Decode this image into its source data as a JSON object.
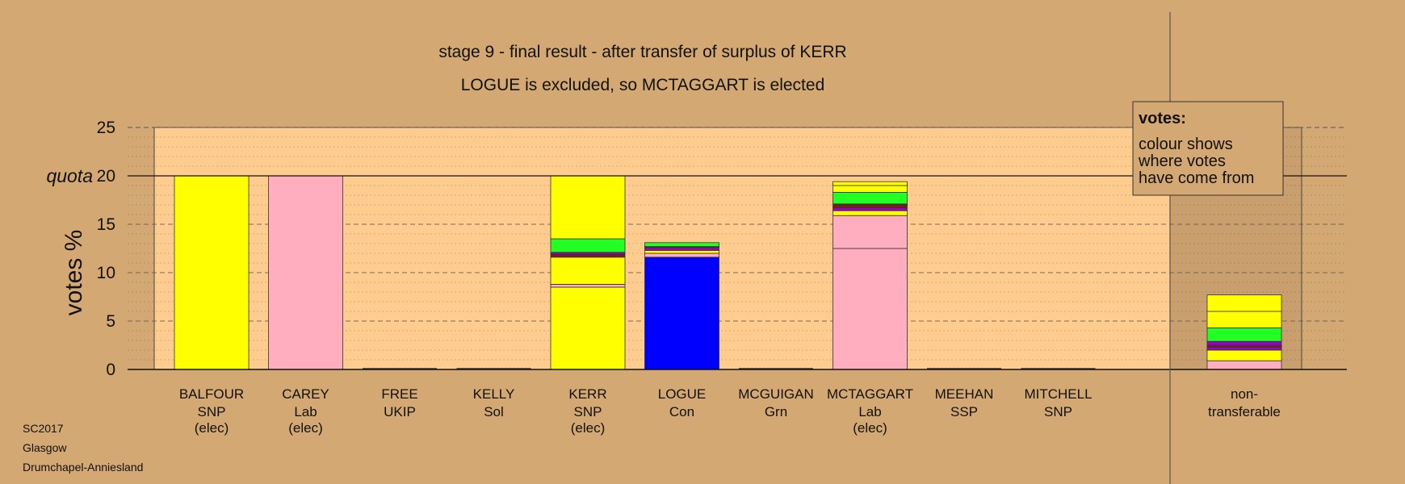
{
  "chart_data": {
    "type": "bar",
    "title": "stage 9 - final result - after transfer of surplus of KERR",
    "subtitle": "LOGUE is excluded, so MCTAGGART is elected",
    "ylabel": "votes %",
    "ylim": [
      0,
      25
    ],
    "yticks": [
      "0",
      "5",
      "10",
      "15",
      "20",
      "25"
    ],
    "quota_label": "quota",
    "quota": 20,
    "grid": true,
    "candidates": [
      {
        "name": "BALFOUR",
        "party": "SNP",
        "status": "(elec)",
        "segments": [
          {
            "value": 20,
            "color": "#ffff00"
          }
        ]
      },
      {
        "name": "CAREY",
        "party": "Lab",
        "status": "(elec)",
        "segments": [
          {
            "value": 20,
            "color": "#ffaec0"
          }
        ]
      },
      {
        "name": "FREE",
        "party": "UKIP",
        "status": "",
        "segments": []
      },
      {
        "name": "KELLY",
        "party": "Sol",
        "status": "",
        "segments": []
      },
      {
        "name": "KERR",
        "party": "SNP",
        "status": "(elec)",
        "segments": [
          {
            "value": 8.5,
            "color": "#ffff00"
          },
          {
            "value": 0.3,
            "color": "#ffaec0"
          },
          {
            "value": 2.8,
            "color": "#ffff00"
          },
          {
            "value": 0.3,
            "color": "#7a1c1c"
          },
          {
            "value": 0.2,
            "color": "#9900cc"
          },
          {
            "value": 1.4,
            "color": "#22ff22"
          },
          {
            "value": 6.5,
            "color": "#ffff00"
          }
        ]
      },
      {
        "name": "LOGUE",
        "party": "Con",
        "status": "",
        "segments": [
          {
            "value": 11.6,
            "color": "#0000ff"
          },
          {
            "value": 0.4,
            "color": "#ffaec0"
          },
          {
            "value": 0.3,
            "color": "#ffff00"
          },
          {
            "value": 0.3,
            "color": "#9900cc"
          },
          {
            "value": 0.1,
            "color": "#7a1c1c"
          },
          {
            "value": 0.4,
            "color": "#22ff22"
          }
        ]
      },
      {
        "name": "MCGUIGAN",
        "party": "Grn",
        "status": "",
        "segments": []
      },
      {
        "name": "MCTAGGART",
        "party": "Lab",
        "status": "(elec)",
        "segments": [
          {
            "value": 12.5,
            "color": "#ffaec0"
          },
          {
            "value": 3.4,
            "color": "#ffaec0"
          },
          {
            "value": 0.5,
            "color": "#ffff00"
          },
          {
            "value": 0.3,
            "color": "#9900cc"
          },
          {
            "value": 0.4,
            "color": "#7a1c1c"
          },
          {
            "value": 1.2,
            "color": "#22ff22"
          },
          {
            "value": 0.7,
            "color": "#ffff00"
          },
          {
            "value": 0.4,
            "color": "#ffff00"
          }
        ]
      },
      {
        "name": "MEEHAN",
        "party": "SSP",
        "status": "",
        "segments": []
      },
      {
        "name": "MITCHELL",
        "party": "SNP",
        "status": "",
        "segments": []
      }
    ],
    "nontransferable": {
      "label_line1": "non-",
      "label_line2": "transferable",
      "segments": [
        {
          "value": 0.9,
          "color": "#ffaec0"
        },
        {
          "value": 1.1,
          "color": "#ffff00"
        },
        {
          "value": 0.3,
          "color": "#9900cc"
        },
        {
          "value": 0.2,
          "color": "#7a1c1c"
        },
        {
          "value": 0.4,
          "color": "#9900cc"
        },
        {
          "value": 1.4,
          "color": "#22ff22"
        },
        {
          "value": 1.7,
          "color": "#ffff00"
        },
        {
          "value": 1.7,
          "color": "#ffff00"
        }
      ]
    },
    "legend": {
      "title": "votes:",
      "lines": [
        "colour shows",
        "where votes",
        "have come from"
      ],
      "placement": "top-right"
    }
  },
  "footer": {
    "line1": "SC2017",
    "line2": "Glasgow",
    "line3": "Drumchapel-Anniesland"
  },
  "colors": {
    "background": "#d4a873",
    "plot": "#ffcc8f",
    "nontransferable_area": "#c89f6d"
  }
}
